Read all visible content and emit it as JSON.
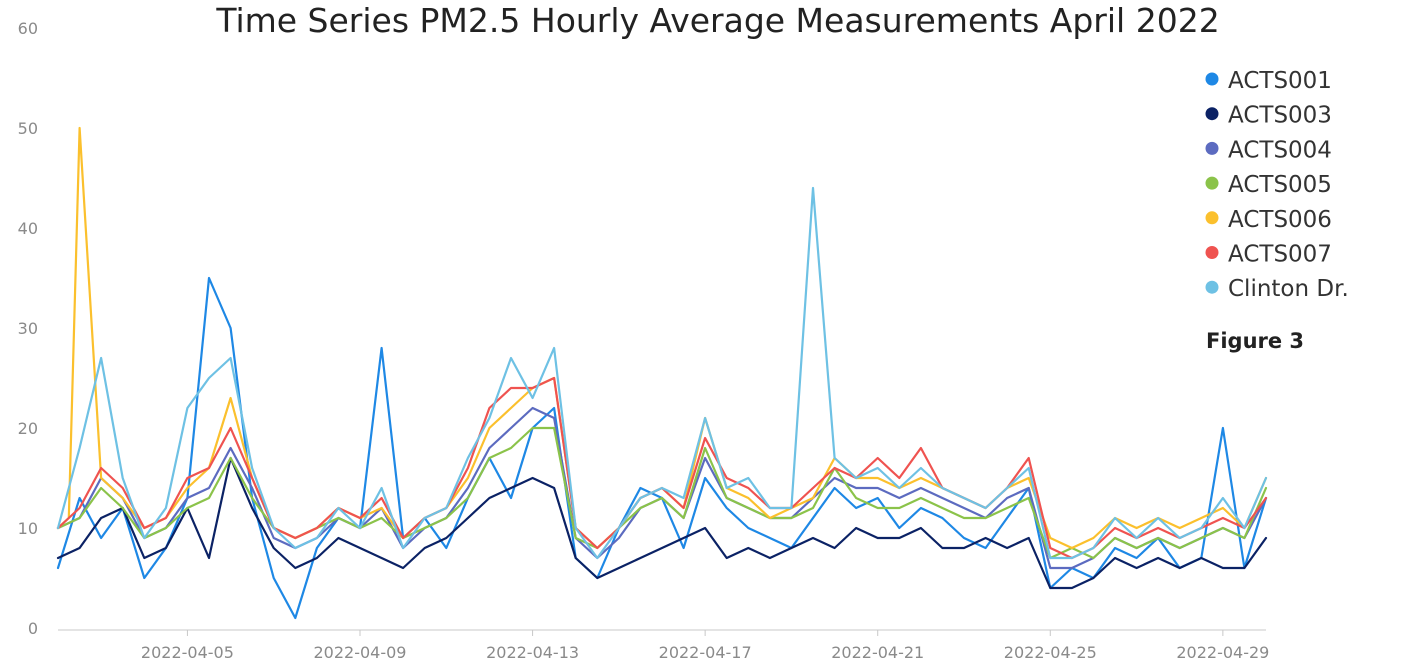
{
  "chart_data": {
    "type": "line",
    "title": "Time Series PM2.5 Hourly Average Measurements April 2022",
    "annotation": "Figure 3",
    "xlabel": "",
    "ylabel": "",
    "xlim": [
      "2022-04-02",
      "2022-04-30"
    ],
    "ylim": [
      0,
      60
    ],
    "yticks": [
      "0",
      "10",
      "20",
      "30",
      "40",
      "50",
      "60"
    ],
    "xticks": [
      "2022-04-05",
      "2022-04-09",
      "2022-04-13",
      "2022-04-17",
      "2022-04-21",
      "2022-04-25",
      "2022-04-29"
    ],
    "grid": false,
    "legend_position": "top-right",
    "series": [
      {
        "name": "ACTS001",
        "color": "#1e88e5",
        "x": [
          "2022-04-02",
          "2022-04-02 12:00",
          "2022-04-03",
          "2022-04-03 12:00",
          "2022-04-04",
          "2022-04-04 12:00",
          "2022-04-05",
          "2022-04-05 12:00",
          "2022-04-06",
          "2022-04-06 12:00",
          "2022-04-07",
          "2022-04-07 12:00",
          "2022-04-08",
          "2022-04-08 12:00",
          "2022-04-09",
          "2022-04-09 12:00",
          "2022-04-10",
          "2022-04-10 12:00",
          "2022-04-11",
          "2022-04-11 12:00",
          "2022-04-12",
          "2022-04-12 12:00",
          "2022-04-13",
          "2022-04-13 12:00",
          "2022-04-14",
          "2022-04-14 12:00",
          "2022-04-15",
          "2022-04-15 12:00",
          "2022-04-16",
          "2022-04-16 12:00",
          "2022-04-17",
          "2022-04-17 12:00",
          "2022-04-18",
          "2022-04-18 12:00",
          "2022-04-19",
          "2022-04-19 12:00",
          "2022-04-20",
          "2022-04-20 12:00",
          "2022-04-21",
          "2022-04-21 12:00",
          "2022-04-22",
          "2022-04-22 12:00",
          "2022-04-23",
          "2022-04-23 12:00",
          "2022-04-24",
          "2022-04-24 12:00",
          "2022-04-25",
          "2022-04-25 12:00",
          "2022-04-26",
          "2022-04-26 12:00",
          "2022-04-27",
          "2022-04-27 12:00",
          "2022-04-28",
          "2022-04-28 12:00",
          "2022-04-29",
          "2022-04-29 12:00",
          "2022-04-30"
        ],
        "y": [
          6,
          13,
          9,
          12,
          5,
          8,
          13,
          35,
          30,
          13,
          5,
          1,
          8,
          11,
          10,
          28,
          9,
          11,
          8,
          13,
          17,
          13,
          20,
          22,
          7,
          5,
          10,
          14,
          13,
          8,
          15,
          12,
          10,
          9,
          8,
          11,
          14,
          12,
          13,
          10,
          12,
          11,
          9,
          8,
          11,
          14,
          4,
          6,
          5,
          8,
          7,
          9,
          6,
          7,
          20,
          6,
          13
        ]
      },
      {
        "name": "ACTS003",
        "color": "#0b2265",
        "x": [
          "2022-04-02",
          "2022-04-02 12:00",
          "2022-04-03",
          "2022-04-03 12:00",
          "2022-04-04",
          "2022-04-04 12:00",
          "2022-04-05",
          "2022-04-05 12:00",
          "2022-04-06",
          "2022-04-06 12:00",
          "2022-04-07",
          "2022-04-07 12:00",
          "2022-04-08",
          "2022-04-08 12:00",
          "2022-04-09",
          "2022-04-09 12:00",
          "2022-04-10",
          "2022-04-10 12:00",
          "2022-04-11",
          "2022-04-11 12:00",
          "2022-04-12",
          "2022-04-12 12:00",
          "2022-04-13",
          "2022-04-13 12:00",
          "2022-04-14",
          "2022-04-14 12:00",
          "2022-04-15",
          "2022-04-15 12:00",
          "2022-04-16",
          "2022-04-16 12:00",
          "2022-04-17",
          "2022-04-17 12:00",
          "2022-04-18",
          "2022-04-18 12:00",
          "2022-04-19",
          "2022-04-19 12:00",
          "2022-04-20",
          "2022-04-20 12:00",
          "2022-04-21",
          "2022-04-21 12:00",
          "2022-04-22",
          "2022-04-22 12:00",
          "2022-04-23",
          "2022-04-23 12:00",
          "2022-04-24",
          "2022-04-24 12:00",
          "2022-04-25",
          "2022-04-25 12:00",
          "2022-04-26",
          "2022-04-26 12:00",
          "2022-04-27",
          "2022-04-27 12:00",
          "2022-04-28",
          "2022-04-28 12:00",
          "2022-04-29",
          "2022-04-29 12:00",
          "2022-04-30"
        ],
        "y": [
          7,
          8,
          11,
          12,
          7,
          8,
          12,
          7,
          17,
          12,
          8,
          6,
          7,
          9,
          8,
          7,
          6,
          8,
          9,
          11,
          13,
          14,
          15,
          14,
          7,
          5,
          6,
          7,
          8,
          9,
          10,
          7,
          8,
          7,
          8,
          9,
          8,
          10,
          9,
          9,
          10,
          8,
          8,
          9,
          8,
          9,
          4,
          4,
          5,
          7,
          6,
          7,
          6,
          7,
          6,
          6,
          9
        ]
      },
      {
        "name": "ACTS004",
        "color": "#5c6bc0",
        "x": [
          "2022-04-02",
          "2022-04-02 12:00",
          "2022-04-03",
          "2022-04-03 12:00",
          "2022-04-04",
          "2022-04-04 12:00",
          "2022-04-05",
          "2022-04-05 12:00",
          "2022-04-06",
          "2022-04-06 12:00",
          "2022-04-07",
          "2022-04-07 12:00",
          "2022-04-08",
          "2022-04-08 12:00",
          "2022-04-09",
          "2022-04-09 12:00",
          "2022-04-10",
          "2022-04-10 12:00",
          "2022-04-11",
          "2022-04-11 12:00",
          "2022-04-12",
          "2022-04-12 12:00",
          "2022-04-13",
          "2022-04-13 12:00",
          "2022-04-14",
          "2022-04-14 12:00",
          "2022-04-15",
          "2022-04-15 12:00",
          "2022-04-16",
          "2022-04-16 12:00",
          "2022-04-17",
          "2022-04-17 12:00",
          "2022-04-18",
          "2022-04-18 12:00",
          "2022-04-19",
          "2022-04-19 12:00",
          "2022-04-20",
          "2022-04-20 12:00",
          "2022-04-21",
          "2022-04-21 12:00",
          "2022-04-22",
          "2022-04-22 12:00",
          "2022-04-23",
          "2022-04-23 12:00",
          "2022-04-24",
          "2022-04-24 12:00",
          "2022-04-25",
          "2022-04-25 12:00",
          "2022-04-26",
          "2022-04-26 12:00",
          "2022-04-27",
          "2022-04-27 12:00",
          "2022-04-28",
          "2022-04-28 12:00",
          "2022-04-29",
          "2022-04-29 12:00",
          "2022-04-30"
        ],
        "y": [
          10,
          11,
          15,
          13,
          9,
          10,
          13,
          14,
          18,
          14,
          9,
          8,
          9,
          11,
          10,
          12,
          8,
          10,
          11,
          14,
          18,
          20,
          22,
          21,
          9,
          7,
          9,
          12,
          13,
          11,
          17,
          13,
          12,
          11,
          11,
          13,
          15,
          14,
          14,
          13,
          14,
          13,
          12,
          11,
          13,
          14,
          6,
          6,
          7,
          9,
          8,
          9,
          8,
          9,
          10,
          9,
          13
        ]
      },
      {
        "name": "ACTS005",
        "color": "#8bc34a",
        "x": [
          "2022-04-02",
          "2022-04-02 12:00",
          "2022-04-03",
          "2022-04-03 12:00",
          "2022-04-04",
          "2022-04-04 12:00",
          "2022-04-05",
          "2022-04-05 12:00",
          "2022-04-06",
          "2022-04-06 12:00",
          "2022-04-07",
          "2022-04-07 12:00",
          "2022-04-08",
          "2022-04-08 12:00",
          "2022-04-09",
          "2022-04-09 12:00",
          "2022-04-10",
          "2022-04-10 12:00",
          "2022-04-11",
          "2022-04-11 12:00",
          "2022-04-12",
          "2022-04-12 12:00",
          "2022-04-13",
          "2022-04-13 12:00",
          "2022-04-14",
          "2022-04-14 12:00",
          "2022-04-15",
          "2022-04-15 12:00",
          "2022-04-16",
          "2022-04-16 12:00",
          "2022-04-17",
          "2022-04-17 12:00",
          "2022-04-18",
          "2022-04-18 12:00",
          "2022-04-19",
          "2022-04-19 12:00",
          "2022-04-20",
          "2022-04-20 12:00",
          "2022-04-21",
          "2022-04-21 12:00",
          "2022-04-22",
          "2022-04-22 12:00",
          "2022-04-23",
          "2022-04-23 12:00",
          "2022-04-24",
          "2022-04-24 12:00",
          "2022-04-25",
          "2022-04-25 12:00",
          "2022-04-26",
          "2022-04-26 12:00",
          "2022-04-27",
          "2022-04-27 12:00",
          "2022-04-28",
          "2022-04-28 12:00",
          "2022-04-29",
          "2022-04-29 12:00",
          "2022-04-30"
        ],
        "y": [
          10,
          11,
          14,
          12,
          9,
          10,
          12,
          13,
          17,
          13,
          10,
          9,
          10,
          11,
          10,
          11,
          9,
          10,
          11,
          13,
          17,
          18,
          20,
          20,
          9,
          8,
          10,
          12,
          13,
          11,
          18,
          13,
          12,
          11,
          11,
          12,
          16,
          13,
          12,
          12,
          13,
          12,
          11,
          11,
          12,
          13,
          7,
          8,
          7,
          9,
          8,
          9,
          8,
          9,
          10,
          9,
          14
        ]
      },
      {
        "name": "ACTS006",
        "color": "#fbc02d",
        "x": [
          "2022-04-02",
          "2022-04-02 06:00",
          "2022-04-02 12:00",
          "2022-04-03",
          "2022-04-03 12:00",
          "2022-04-04",
          "2022-04-04 12:00",
          "2022-04-05",
          "2022-04-05 12:00",
          "2022-04-06",
          "2022-04-06 12:00",
          "2022-04-07",
          "2022-04-07 12:00",
          "2022-04-08",
          "2022-04-08 12:00",
          "2022-04-09",
          "2022-04-09 12:00",
          "2022-04-10",
          "2022-04-10 12:00",
          "2022-04-11",
          "2022-04-11 12:00",
          "2022-04-12",
          "2022-04-12 12:00",
          "2022-04-13",
          "2022-04-13 12:00",
          "2022-04-14",
          "2022-04-14 12:00",
          "2022-04-15",
          "2022-04-15 12:00",
          "2022-04-16",
          "2022-04-16 12:00",
          "2022-04-17",
          "2022-04-17 12:00",
          "2022-04-18",
          "2022-04-18 12:00",
          "2022-04-19",
          "2022-04-19 12:00",
          "2022-04-20",
          "2022-04-20 12:00",
          "2022-04-21",
          "2022-04-21 12:00",
          "2022-04-22",
          "2022-04-22 12:00",
          "2022-04-23",
          "2022-04-23 12:00",
          "2022-04-24",
          "2022-04-24 12:00",
          "2022-04-25",
          "2022-04-25 12:00",
          "2022-04-26",
          "2022-04-26 12:00",
          "2022-04-27",
          "2022-04-27 12:00",
          "2022-04-28",
          "2022-04-28 12:00",
          "2022-04-29",
          "2022-04-29 12:00",
          "2022-04-30"
        ],
        "y": [
          10,
          11,
          50,
          15,
          13,
          10,
          11,
          14,
          16,
          23,
          15,
          10,
          9,
          10,
          12,
          11,
          12,
          9,
          11,
          12,
          15,
          20,
          22,
          24,
          25,
          10,
          8,
          10,
          13,
          14,
          12,
          21,
          14,
          13,
          11,
          12,
          13,
          17,
          15,
          15,
          14,
          15,
          14,
          13,
          12,
          14,
          15,
          9,
          8,
          9,
          11,
          10,
          11,
          10,
          11,
          12,
          10,
          15
        ]
      },
      {
        "name": "ACTS007",
        "color": "#ef5350",
        "x": [
          "2022-04-02",
          "2022-04-02 12:00",
          "2022-04-03",
          "2022-04-03 12:00",
          "2022-04-04",
          "2022-04-04 12:00",
          "2022-04-05",
          "2022-04-05 12:00",
          "2022-04-06",
          "2022-04-06 12:00",
          "2022-04-07",
          "2022-04-07 12:00",
          "2022-04-08",
          "2022-04-08 12:00",
          "2022-04-09",
          "2022-04-09 12:00",
          "2022-04-10",
          "2022-04-10 12:00",
          "2022-04-11",
          "2022-04-11 12:00",
          "2022-04-12",
          "2022-04-12 12:00",
          "2022-04-13",
          "2022-04-13 12:00",
          "2022-04-14",
          "2022-04-14 12:00",
          "2022-04-15",
          "2022-04-15 12:00",
          "2022-04-16",
          "2022-04-16 12:00",
          "2022-04-17",
          "2022-04-17 12:00",
          "2022-04-18",
          "2022-04-18 12:00",
          "2022-04-19",
          "2022-04-19 12:00",
          "2022-04-20",
          "2022-04-20 12:00",
          "2022-04-21",
          "2022-04-21 12:00",
          "2022-04-22",
          "2022-04-22 12:00",
          "2022-04-23",
          "2022-04-23 12:00",
          "2022-04-24",
          "2022-04-24 12:00",
          "2022-04-25",
          "2022-04-25 12:00",
          "2022-04-26",
          "2022-04-26 12:00",
          "2022-04-27",
          "2022-04-27 12:00",
          "2022-04-28",
          "2022-04-28 12:00",
          "2022-04-29",
          "2022-04-29 12:00",
          "2022-04-30"
        ],
        "y": [
          10,
          12,
          16,
          14,
          10,
          11,
          15,
          16,
          20,
          15,
          10,
          9,
          10,
          12,
          11,
          13,
          9,
          11,
          12,
          16,
          22,
          24,
          24,
          25,
          10,
          8,
          10,
          13,
          14,
          12,
          19,
          15,
          14,
          12,
          12,
          14,
          16,
          15,
          17,
          15,
          18,
          14,
          13,
          12,
          14,
          17,
          8,
          7,
          8,
          10,
          9,
          10,
          9,
          10,
          11,
          10,
          13
        ]
      },
      {
        "name": "Clinton Dr.",
        "color": "#6ec1e4",
        "x": [
          "2022-04-02",
          "2022-04-02 12:00",
          "2022-04-03",
          "2022-04-03 12:00",
          "2022-04-04",
          "2022-04-04 12:00",
          "2022-04-05",
          "2022-04-05 12:00",
          "2022-04-06",
          "2022-04-06 12:00",
          "2022-04-07",
          "2022-04-07 12:00",
          "2022-04-08",
          "2022-04-08 12:00",
          "2022-04-09",
          "2022-04-09 12:00",
          "2022-04-10",
          "2022-04-10 12:00",
          "2022-04-11",
          "2022-04-11 12:00",
          "2022-04-12",
          "2022-04-12 12:00",
          "2022-04-13",
          "2022-04-13 12:00",
          "2022-04-14",
          "2022-04-14 12:00",
          "2022-04-15",
          "2022-04-15 12:00",
          "2022-04-16",
          "2022-04-16 12:00",
          "2022-04-17",
          "2022-04-17 12:00",
          "2022-04-18",
          "2022-04-18 12:00",
          "2022-04-19",
          "2022-04-19 12:00",
          "2022-04-20",
          "2022-04-20 12:00",
          "2022-04-21",
          "2022-04-21 12:00",
          "2022-04-22",
          "2022-04-22 12:00",
          "2022-04-23",
          "2022-04-23 12:00",
          "2022-04-24",
          "2022-04-24 12:00",
          "2022-04-25",
          "2022-04-25 12:00",
          "2022-04-26",
          "2022-04-26 12:00",
          "2022-04-27",
          "2022-04-27 12:00",
          "2022-04-28",
          "2022-04-28 12:00",
          "2022-04-29",
          "2022-04-29 12:00",
          "2022-04-30"
        ],
        "y": [
          10,
          18,
          27,
          15,
          9,
          12,
          22,
          25,
          27,
          16,
          10,
          8,
          9,
          12,
          10,
          14,
          8,
          11,
          12,
          17,
          21,
          27,
          23,
          28,
          10,
          7,
          10,
          13,
          14,
          13,
          21,
          14,
          15,
          12,
          12,
          44,
          17,
          15,
          16,
          14,
          16,
          14,
          13,
          12,
          14,
          16,
          7,
          7,
          8,
          11,
          9,
          11,
          9,
          10,
          13,
          10,
          15
        ]
      }
    ]
  }
}
